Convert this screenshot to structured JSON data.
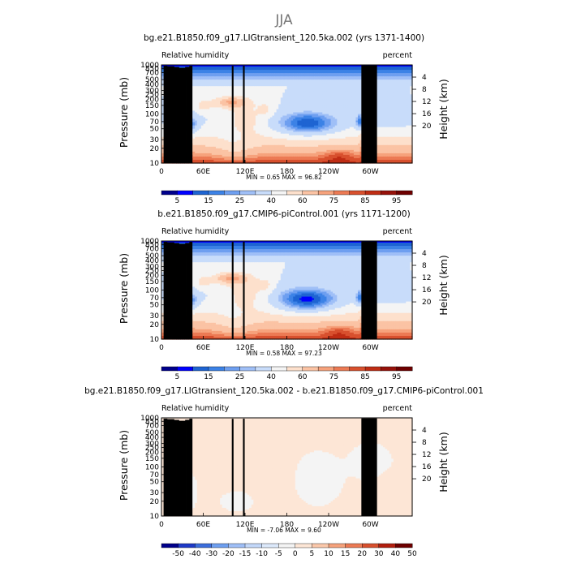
{
  "page_title": "JJA",
  "colors": {
    "palette_rh": [
      "#00008b",
      "#0000ff",
      "#1e64d2",
      "#3c82e6",
      "#6e9ff0",
      "#9fbff7",
      "#c8dcfa",
      "#f4f4f4",
      "#fde0cc",
      "#fbc3a4",
      "#f6a27c",
      "#ec7a54",
      "#d8502e",
      "#bf2d14",
      "#96120a",
      "#6e0000"
    ],
    "palette_diff": [
      "#00008b",
      "#1e3ac8",
      "#3c6edc",
      "#6e9ff0",
      "#9fbff7",
      "#c3d8fa",
      "#dce9fb",
      "#f4f4f4",
      "#fde6d6",
      "#fbc8aa",
      "#f6a27c",
      "#ec7a54",
      "#d8502e",
      "#b21e0e",
      "#6e0000"
    ],
    "terrain": "#000000",
    "title_gray": "#777777"
  },
  "chart_data": [
    {
      "type": "heatmap",
      "title": "bg.e21.B1850.f09_g17.LIGtransient_120.5ka.002 (yrs 1371-1400)",
      "left_label": "Relative humidity",
      "right_label": "percent",
      "ylabel": "Pressure (mb)",
      "ylabel_right": "Height (km)",
      "x_ticks": [
        "0",
        "60E",
        "120E",
        "180",
        "120W",
        "60W"
      ],
      "x_tick_values": [
        0,
        60,
        120,
        180,
        240,
        300
      ],
      "xlim": [
        0,
        360
      ],
      "y_tick_labels": [
        "1000",
        "850",
        "700",
        "500",
        "400",
        "300",
        "250",
        "200",
        "150",
        "100",
        "70",
        "50",
        "30",
        "20",
        "10"
      ],
      "y_tick_values": [
        1000,
        850,
        700,
        500,
        400,
        300,
        250,
        200,
        150,
        100,
        70,
        50,
        30,
        20,
        10
      ],
      "ylim": [
        1000,
        10
      ],
      "yscale": "log",
      "height_ticks": [
        "4",
        "8",
        "12",
        "16",
        "20"
      ],
      "height_tick_values": [
        4,
        8,
        12,
        16,
        20
      ],
      "stats": "MIN =    0.65   MAX =   96.82",
      "colorbar_levels": [
        "5",
        "10",
        "15",
        "20",
        "25",
        "30",
        "40",
        "50",
        "60",
        "70",
        "75",
        "80",
        "85",
        "90",
        "95"
      ],
      "colorbar_labels": [
        "5",
        "15",
        "25",
        "40",
        "60",
        "75",
        "85",
        "95"
      ],
      "field": "rh"
    },
    {
      "type": "heatmap",
      "title": "b.e21.B1850.f09_g17.CMIP6-piControl.001 (yrs 1171-1200)",
      "left_label": "Relative humidity",
      "right_label": "percent",
      "ylabel": "Pressure (mb)",
      "ylabel_right": "Height (km)",
      "x_ticks": [
        "0",
        "60E",
        "120E",
        "180",
        "120W",
        "60W"
      ],
      "x_tick_values": [
        0,
        60,
        120,
        180,
        240,
        300
      ],
      "xlim": [
        0,
        360
      ],
      "y_tick_labels": [
        "1000",
        "850",
        "700",
        "500",
        "400",
        "300",
        "250",
        "200",
        "150",
        "100",
        "70",
        "50",
        "30",
        "20",
        "10"
      ],
      "y_tick_values": [
        1000,
        850,
        700,
        500,
        400,
        300,
        250,
        200,
        150,
        100,
        70,
        50,
        30,
        20,
        10
      ],
      "ylim": [
        1000,
        10
      ],
      "yscale": "log",
      "height_ticks": [
        "4",
        "8",
        "12",
        "16",
        "20"
      ],
      "height_tick_values": [
        4,
        8,
        12,
        16,
        20
      ],
      "stats": "MIN =    0.58   MAX =   97.23",
      "colorbar_levels": [
        "5",
        "10",
        "15",
        "20",
        "25",
        "30",
        "40",
        "50",
        "60",
        "70",
        "75",
        "80",
        "85",
        "90",
        "95"
      ],
      "colorbar_labels": [
        "5",
        "15",
        "25",
        "40",
        "60",
        "75",
        "85",
        "95"
      ],
      "field": "rh"
    },
    {
      "type": "heatmap",
      "title": "bg.e21.B1850.f09_g17.LIGtransient_120.5ka.002 - b.e21.B1850.f09_g17.CMIP6-piControl.001",
      "left_label": "Relative humidity",
      "right_label": "percent",
      "ylabel": "Pressure (mb)",
      "ylabel_right": "Height (km)",
      "x_ticks": [
        "0",
        "60E",
        "120E",
        "180",
        "120W",
        "60W"
      ],
      "x_tick_values": [
        0,
        60,
        120,
        180,
        240,
        300
      ],
      "xlim": [
        0,
        360
      ],
      "y_tick_labels": [
        "1000",
        "850",
        "700",
        "500",
        "400",
        "300",
        "250",
        "200",
        "150",
        "100",
        "70",
        "50",
        "30",
        "20",
        "10"
      ],
      "y_tick_values": [
        1000,
        850,
        700,
        500,
        400,
        300,
        250,
        200,
        150,
        100,
        70,
        50,
        30,
        20,
        10
      ],
      "ylim": [
        1000,
        10
      ],
      "yscale": "log",
      "height_ticks": [
        "4",
        "8",
        "12",
        "16",
        "20"
      ],
      "height_tick_values": [
        4,
        8,
        12,
        16,
        20
      ],
      "stats": "MIN =   -7.06   MAX =    9.60",
      "colorbar_levels": [
        "-50",
        "-40",
        "-30",
        "-20",
        "-15",
        "-10",
        "-5",
        "0",
        "5",
        "10",
        "15",
        "20",
        "30",
        "40",
        "50"
      ],
      "colorbar_labels": [
        "-50",
        "-40",
        "-30",
        "-20",
        "-15",
        "-10",
        "-5",
        "0",
        "5",
        "10",
        "15",
        "20",
        "30",
        "40",
        "50"
      ],
      "field": "diff"
    }
  ]
}
